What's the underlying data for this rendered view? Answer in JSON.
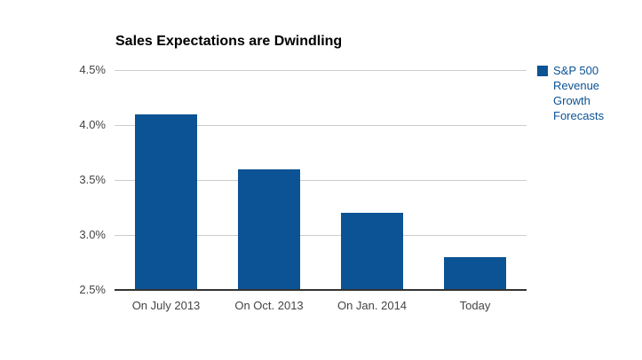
{
  "chart_data": {
    "type": "bar",
    "title": "Sales Expectations are Dwindling",
    "categories": [
      "On July 2013",
      "On Oct. 2013",
      "On Jan. 2014",
      "Today"
    ],
    "series": [
      {
        "name": "S&P 500 Revenue Growth Forecasts",
        "values": [
          4.1,
          3.6,
          3.2,
          2.8
        ]
      }
    ],
    "xlabel": "",
    "ylabel": "",
    "ylim": [
      2.5,
      4.5
    ],
    "yticks": [
      {
        "value": 2.5,
        "label": "2.5%"
      },
      {
        "value": 3.0,
        "label": "3.0%"
      },
      {
        "value": 3.5,
        "label": "3.5%"
      },
      {
        "value": 4.0,
        "label": "4.0%"
      },
      {
        "value": 4.5,
        "label": "4.5%"
      }
    ],
    "grid": true,
    "legend_position": "right"
  },
  "colors": {
    "bar": "#0B5394",
    "legend_text": "#0B5394",
    "gridline": "#CCCCCC",
    "baseline": "#333333",
    "axis_text": "#444444",
    "title_text": "#000000",
    "background": "#FFFFFF"
  }
}
